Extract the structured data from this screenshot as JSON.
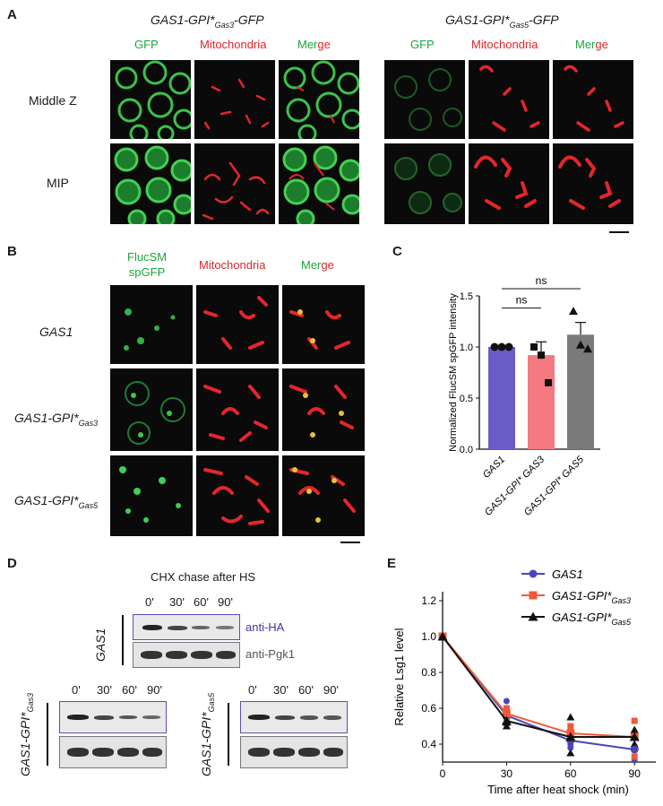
{
  "panel_a": {
    "letter": "A",
    "left_title": "GAS1-GPI*",
    "left_title_sub": "Gas3",
    "left_title_suffix": "-GFP",
    "right_title": "GAS1-GPI*",
    "right_title_sub": "Gas5",
    "right_title_suffix": "-GFP",
    "ch_gfp": "GFP",
    "ch_mito": "Mitochondria",
    "ch_merge_a": "Mer",
    "ch_merge_b": "ge",
    "row1": "Middle Z",
    "row2": "MIP"
  },
  "panel_b": {
    "letter": "B",
    "ch_gfp_1": "FlucSM",
    "ch_gfp_2": "spGFP",
    "ch_mito": "Mitochondria",
    "ch_merge_a": "Mer",
    "ch_merge_b": "ge",
    "row1": "GAS1",
    "row2": "GAS1-GPI*",
    "row2_sub": "Gas3",
    "row3": "GAS1-GPI*",
    "row3_sub": "Gas5"
  },
  "panel_c": {
    "letter": "C",
    "ns_top": "ns",
    "ns_bottom": "ns",
    "chart_data": {
      "type": "bar",
      "ylabel": "Normalized FlucSM spGFP intensity",
      "ylim": [
        0,
        1.5
      ],
      "yticks": [
        "0.0",
        "0.5",
        "1.0",
        "1.5"
      ],
      "categories": [
        "GAS1",
        "GAS1-GPI* GAS3",
        "GAS1-GPI* GAS5"
      ],
      "values": [
        1.0,
        0.92,
        1.12
      ],
      "errors": [
        0.0,
        0.13,
        0.12
      ],
      "colors": [
        "#6a5cc7",
        "#f27a80",
        "#7a7a7a"
      ],
      "points": [
        [
          1.0,
          1.0,
          1.0
        ],
        [
          1.0,
          0.92,
          0.65
        ],
        [
          1.35,
          1.02,
          0.98
        ]
      ]
    }
  },
  "panel_d": {
    "letter": "D",
    "heading": "CHX chase after HS",
    "timepoints": [
      "0'",
      "30'",
      "60'",
      "90'"
    ],
    "gas1_label": "GAS1",
    "anti_ha": "anti-HA",
    "anti_pgk1": "anti-Pgk1",
    "gas3_label": "GAS1-GPI*",
    "gas3_sub": "Gas3",
    "gas5_label": "GAS1-GPI*",
    "gas5_sub": "Gas5"
  },
  "panel_e": {
    "letter": "E",
    "legend": [
      {
        "name": "GAS1",
        "sub": ""
      },
      {
        "name": "GAS1-GPI*",
        "sub": "Gas3"
      },
      {
        "name": "GAS1-GPI*",
        "sub": "Gas5"
      }
    ],
    "chart_data": {
      "type": "line",
      "xlabel": "Time after heat shock (min)",
      "ylabel": "Relative Lsg1 level",
      "x": [
        0,
        30,
        60,
        90
      ],
      "xticks": [
        "0",
        "30",
        "60",
        "90"
      ],
      "yticks": [
        "0.4",
        "0.6",
        "0.8",
        "1.0",
        "1.2"
      ],
      "xlim": [
        0,
        100
      ],
      "ylim": [
        0.3,
        1.25
      ],
      "series": [
        {
          "name": "GAS1",
          "color": "#4a46b8",
          "marker": "circle",
          "values": [
            1.0,
            0.56,
            0.42,
            0.37
          ],
          "points": [
            [
              0.64,
              0.57,
              0.52
            ],
            [
              0.45,
              0.4,
              0.38
            ],
            [
              0.31,
              0.37,
              0.44
            ]
          ]
        },
        {
          "name": "GAS1-GPI* Gas3",
          "color": "#ef5a3a",
          "marker": "square",
          "values": [
            1.0,
            0.57,
            0.46,
            0.44
          ],
          "points": [
            [
              0.6,
              0.55,
              0.56
            ],
            [
              0.5,
              0.44,
              0.43
            ],
            [
              0.53,
              0.44,
              0.33
            ]
          ]
        },
        {
          "name": "GAS1-GPI* Gas5",
          "color": "#111111",
          "marker": "triangle",
          "values": [
            1.0,
            0.53,
            0.44,
            0.44
          ],
          "points": [
            [
              0.56,
              0.52,
              0.5
            ],
            [
              0.55,
              0.43,
              0.35
            ],
            [
              0.48,
              0.45,
              0.4
            ]
          ]
        }
      ]
    }
  }
}
